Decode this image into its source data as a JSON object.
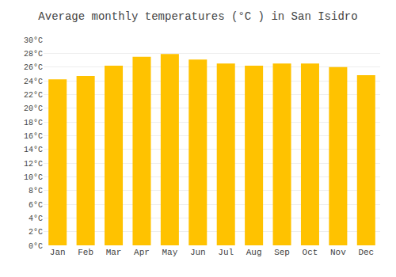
{
  "chart_data": {
    "type": "bar",
    "title": "Average monthly temperatures (°C ) in San Isidro",
    "categories": [
      "Jan",
      "Feb",
      "Mar",
      "Apr",
      "May",
      "Jun",
      "Jul",
      "Aug",
      "Sep",
      "Oct",
      "Nov",
      "Dec"
    ],
    "values": [
      24.2,
      24.7,
      26.2,
      27.5,
      27.9,
      27.1,
      26.5,
      26.2,
      26.5,
      26.5,
      26.0,
      24.8
    ],
    "color": "#FFC200",
    "ylim": [
      0,
      30
    ],
    "yticks": [
      {
        "value": 0,
        "label": "0°C"
      },
      {
        "value": 2,
        "label": "2°C"
      },
      {
        "value": 4,
        "label": "4°C"
      },
      {
        "value": 6,
        "label": "6°C"
      },
      {
        "value": 8,
        "label": "8°C"
      },
      {
        "value": 10,
        "label": "10°C"
      },
      {
        "value": 12,
        "label": "12°C"
      },
      {
        "value": 14,
        "label": "14°C"
      },
      {
        "value": 16,
        "label": "16°C"
      },
      {
        "value": 18,
        "label": "18°C"
      },
      {
        "value": 20,
        "label": "20°C"
      },
      {
        "value": 22,
        "label": "22°C"
      },
      {
        "value": 24,
        "label": "24°C"
      },
      {
        "value": 26,
        "label": "26°C"
      },
      {
        "value": 28,
        "label": "28°C"
      },
      {
        "value": 30,
        "label": "30°C"
      }
    ],
    "grid": true
  }
}
